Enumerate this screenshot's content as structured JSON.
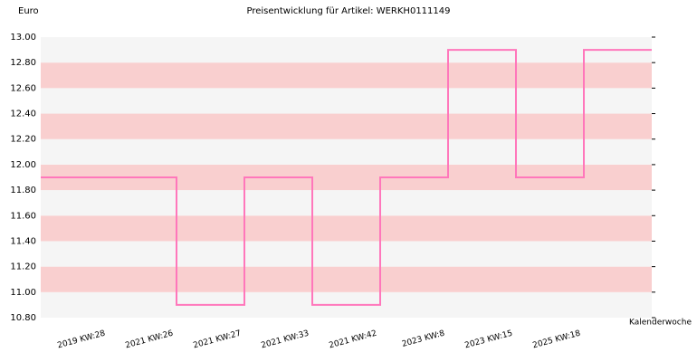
{
  "chart_data": {
    "type": "step",
    "title": "Preisentwicklung für Artikel: WERKH0111149",
    "y_label": "Euro",
    "x_label": "Kalenderwoche",
    "categories": [
      "2019 KW:28",
      "2021 KW:26",
      "2021 KW:27",
      "2021 KW:33",
      "2021 KW:42",
      "2023 KW:8",
      "2023 KW:15",
      "2025 KW:18"
    ],
    "values": [
      11.9,
      10.9,
      11.9,
      10.9,
      11.9,
      12.9,
      11.9,
      12.9
    ],
    "color": "#ff77bb",
    "band_colors": [
      "#f5f5f5",
      "#f9cfcf"
    ],
    "ylim": [
      10.8,
      13.0
    ],
    "yticks": [
      {
        "value": 10.8,
        "label": "10.80"
      },
      {
        "value": 11.0,
        "label": "11.00"
      },
      {
        "value": 11.2,
        "label": "11.20"
      },
      {
        "value": 11.4,
        "label": "11.40"
      },
      {
        "value": 11.6,
        "label": "11.60"
      },
      {
        "value": 11.8,
        "label": "11.80"
      },
      {
        "value": 12.0,
        "label": "12.00"
      },
      {
        "value": 12.2,
        "label": "12.20"
      },
      {
        "value": 12.4,
        "label": "12.40"
      },
      {
        "value": 12.6,
        "label": "12.60"
      },
      {
        "value": 12.8,
        "label": "12.80"
      },
      {
        "value": 13.0,
        "label": "13.00"
      }
    ]
  }
}
